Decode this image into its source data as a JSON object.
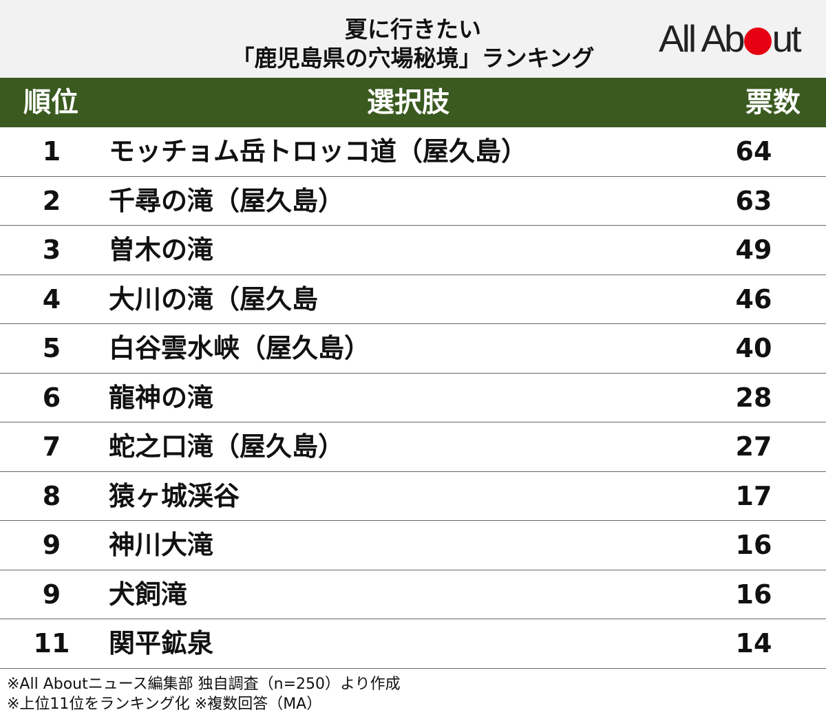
{
  "header": {
    "title_line1": "夏に行きたい",
    "title_line2": "「鹿児島県の穴場秘境」ランキング",
    "logo_text_before": "All Ab",
    "logo_text_after": "ut",
    "logo_dot_color": "#e60012"
  },
  "table": {
    "columns": [
      "順位",
      "選択肢",
      "票数"
    ],
    "header_color": "#3a5a1f",
    "rows": [
      {
        "rank": "1",
        "name": "モッチョム岳トロッコ道（屋久島）",
        "votes": "64"
      },
      {
        "rank": "2",
        "name": "千尋の滝（屋久島）",
        "votes": "63"
      },
      {
        "rank": "3",
        "name": "曽木の滝",
        "votes": "49"
      },
      {
        "rank": "4",
        "name": "大川の滝（屋久島",
        "votes": "46"
      },
      {
        "rank": "5",
        "name": "白谷雲水峡（屋久島）",
        "votes": "40"
      },
      {
        "rank": "6",
        "name": "龍神の滝",
        "votes": "28"
      },
      {
        "rank": "7",
        "name": "蛇之口滝（屋久島）",
        "votes": "27"
      },
      {
        "rank": "8",
        "name": "猿ヶ城渓谷",
        "votes": "17"
      },
      {
        "rank": "9",
        "name": "神川大滝",
        "votes": "16"
      },
      {
        "rank": "9",
        "name": "犬飼滝",
        "votes": "16"
      },
      {
        "rank": "11",
        "name": "関平鉱泉",
        "votes": "14"
      }
    ]
  },
  "notes": {
    "line1": "※All Aboutニュース編集部 独自調査（n=250）より作成",
    "line2": "※上位11位をランキング化 ※複数回答（MA）"
  }
}
